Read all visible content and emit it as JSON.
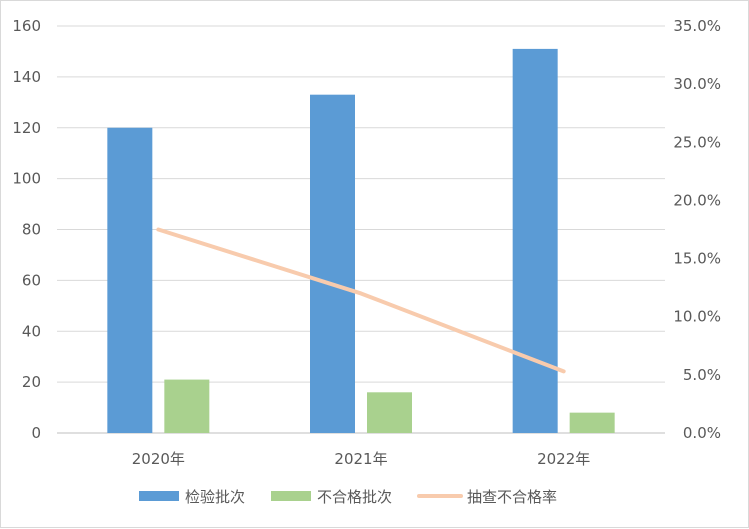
{
  "chart_data": {
    "type": "bar",
    "categories": [
      "2020年",
      "2021年",
      "2022年"
    ],
    "series": [
      {
        "name": "检验批次",
        "kind": "bar",
        "axis": "left",
        "color": "#5b9bd5",
        "values": [
          120,
          133,
          151
        ]
      },
      {
        "name": "不合格批次",
        "kind": "bar",
        "axis": "left",
        "color": "#a9d18e",
        "values": [
          21,
          16,
          8
        ]
      },
      {
        "name": "抽查不合格率",
        "kind": "line",
        "axis": "right",
        "color": "#f8cbad",
        "values": [
          0.175,
          0.12,
          0.053
        ]
      }
    ],
    "y_left": {
      "min": 0,
      "max": 160,
      "ticks": [
        "0",
        "20",
        "40",
        "60",
        "80",
        "100",
        "120",
        "140",
        "160"
      ]
    },
    "y_right": {
      "min": 0,
      "max": 0.35,
      "ticks": [
        "0.0%",
        "5.0%",
        "10.0%",
        "15.0%",
        "20.0%",
        "25.0%",
        "30.0%",
        "35.0%"
      ]
    },
    "grid": true,
    "legend_position": "bottom"
  }
}
